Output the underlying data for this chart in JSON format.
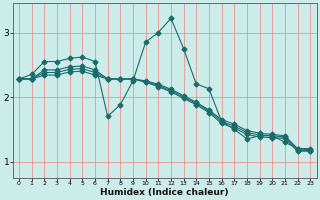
{
  "xlabel": "Humidex (Indice chaleur)",
  "background_color": "#ccecea",
  "grid_color": "#f08080",
  "line_color": "#1a6b6b",
  "x_values": [
    0,
    1,
    2,
    3,
    4,
    5,
    6,
    7,
    8,
    9,
    10,
    11,
    12,
    13,
    14,
    15,
    16,
    17,
    18,
    19,
    20,
    21,
    22,
    23
  ],
  "series": [
    [
      2.28,
      2.35,
      2.55,
      2.55,
      2.6,
      2.62,
      2.55,
      1.7,
      1.88,
      2.25,
      2.85,
      3.0,
      3.22,
      2.75,
      2.2,
      2.13,
      1.62,
      1.5,
      1.35,
      1.4,
      1.4,
      1.3,
      1.2,
      1.2
    ],
    [
      2.28,
      2.28,
      2.42,
      2.42,
      2.47,
      2.48,
      2.42,
      2.28,
      2.28,
      2.28,
      2.25,
      2.2,
      2.12,
      2.02,
      1.92,
      1.8,
      1.65,
      1.58,
      1.48,
      1.44,
      1.42,
      1.4,
      1.2,
      1.18
    ],
    [
      2.28,
      2.28,
      2.38,
      2.38,
      2.43,
      2.44,
      2.38,
      2.28,
      2.28,
      2.28,
      2.24,
      2.18,
      2.1,
      2.0,
      1.9,
      1.78,
      1.62,
      1.55,
      1.45,
      1.41,
      1.4,
      1.38,
      1.18,
      1.17
    ],
    [
      2.28,
      2.28,
      2.34,
      2.34,
      2.39,
      2.4,
      2.34,
      2.28,
      2.28,
      2.28,
      2.23,
      2.16,
      2.08,
      1.98,
      1.88,
      1.76,
      1.59,
      1.52,
      1.42,
      1.38,
      1.37,
      1.36,
      1.16,
      1.16
    ]
  ],
  "ylim": [
    0.75,
    3.45
  ],
  "yticks": [
    1,
    2,
    3
  ],
  "xlim": [
    -0.5,
    23.5
  ],
  "markersize": 2.5,
  "linewidth": 0.8,
  "figsize": [
    3.2,
    2.0
  ],
  "dpi": 100
}
